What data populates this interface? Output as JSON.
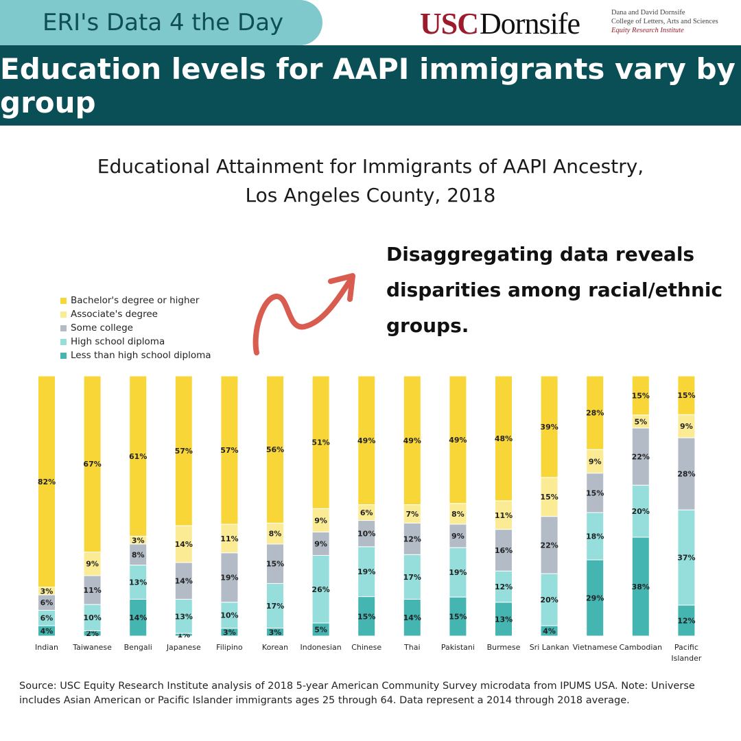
{
  "header": {
    "pill_text": "ERI's Data 4 the Day",
    "logo_usc": "USC",
    "logo_dornsife": "Dornsife",
    "logo_sub_line1": "Dana and David Dornsife",
    "logo_sub_line2": "College of Letters, Arts and Sciences",
    "logo_sub_line3": "Equity Research Institute"
  },
  "banner_title": "Education levels for AAPI immigrants vary by group",
  "chart_title_line1": "Educational Attainment for Immigrants of AAPI Ancestry,",
  "chart_title_line2": "Los Angeles County,  2018",
  "callout": {
    "line1": "Disaggregating data reveals",
    "line2": "disparities among racial/ethnic",
    "line3": "groups."
  },
  "colors": {
    "bachelor": "#f9d637",
    "associate": "#fbeb95",
    "some_college": "#b3bcc6",
    "high_school": "#95dedc",
    "less_hs": "#45b5b1",
    "banner": "#0a4f55",
    "pill": "#7fc8cb",
    "arrow": "#d95c50"
  },
  "chart_data": {
    "type": "bar",
    "stacked": true,
    "title": "Educational Attainment for Immigrants of AAPI Ancestry, Los Angeles County, 2018",
    "categories": [
      "Indian",
      "Taiwanese",
      "Bengali",
      "Japanese",
      "Filipino",
      "Korean",
      "Indonesian",
      "Chinese",
      "Thai",
      "Pakistani",
      "Burmese",
      "Sri Lankan",
      "Vietnamese",
      "Cambodian",
      "Pacific Islander"
    ],
    "series": [
      {
        "name": "Less than high school diploma",
        "values": [
          4,
          2,
          14,
          1,
          3,
          3,
          5,
          15,
          14,
          15,
          13,
          4,
          29,
          38,
          12
        ]
      },
      {
        "name": "High school diploma",
        "values": [
          6,
          10,
          13,
          13,
          10,
          17,
          26,
          19,
          17,
          19,
          12,
          20,
          18,
          20,
          37
        ]
      },
      {
        "name": "Some college",
        "values": [
          6,
          11,
          8,
          14,
          19,
          15,
          9,
          10,
          12,
          9,
          16,
          22,
          15,
          22,
          28
        ]
      },
      {
        "name": "Associate's degree",
        "values": [
          3,
          9,
          3,
          14,
          11,
          8,
          9,
          6,
          7,
          8,
          11,
          15,
          9,
          5,
          9
        ]
      },
      {
        "name": "Bachelor's degree or higher",
        "values": [
          82,
          67,
          61,
          57,
          57,
          56,
          51,
          49,
          49,
          49,
          48,
          39,
          28,
          15,
          15
        ]
      }
    ],
    "legend": [
      "Bachelor's degree or higher",
      "Associate's degree",
      "Some college",
      "High school diploma",
      "Less than high school diploma"
    ],
    "ylim": [
      0,
      100
    ],
    "value_suffix": "%"
  },
  "source_text": "Source: USC Equity Research Institute analysis of 2018 5-year American Community Survey microdata from IPUMS USA. Note: Universe includes Asian American or Pacific Islander immigrants ages 25 through 64. Data represent a 2014 through 2018 average."
}
